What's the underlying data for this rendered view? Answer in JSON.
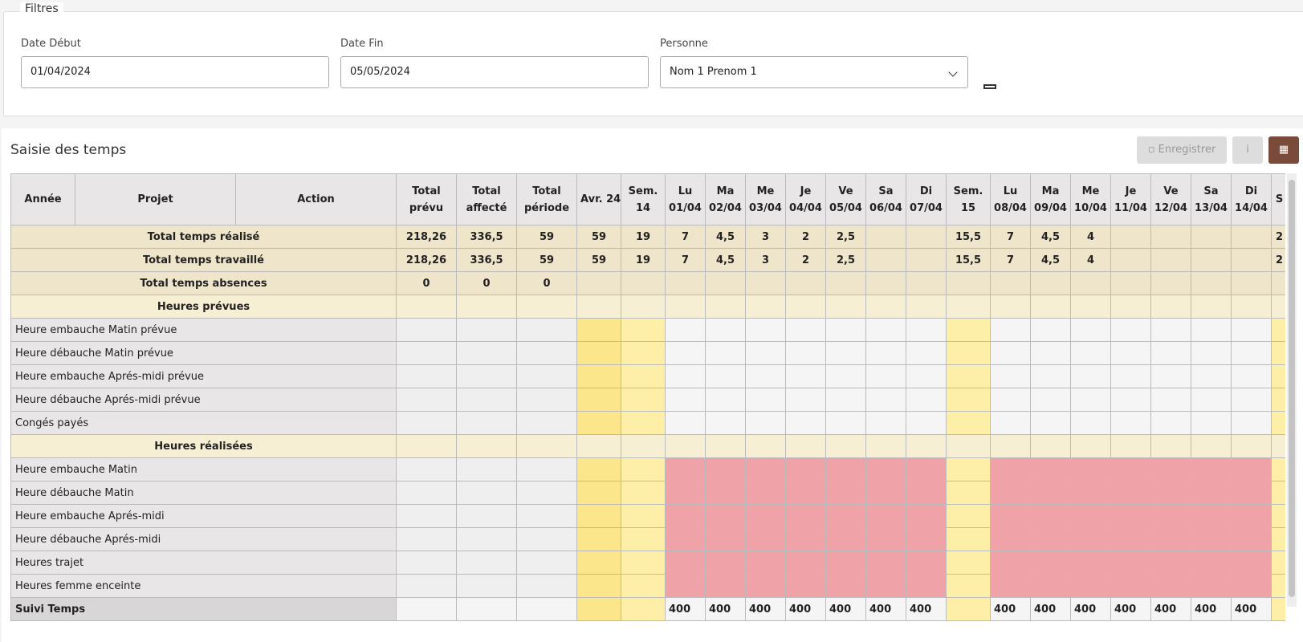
{
  "filters": {
    "legend": "Filtres",
    "fields": [
      {
        "label": "Date Début",
        "value": "01/04/2024"
      },
      {
        "label": "Date Fin",
        "value": "05/05/2024"
      },
      {
        "label": "Personne",
        "value": "Nom 1 Prenom 1"
      }
    ]
  },
  "panel": {
    "title": "Saisie des temps",
    "buttons": [
      "Enregistrer",
      "i"
    ]
  },
  "table": {
    "headers": [
      [
        "Année"
      ],
      [
        "Projet"
      ],
      [
        "Action"
      ],
      [
        "Total",
        "prévu"
      ],
      [
        "Total",
        "affecté"
      ],
      [
        "Total",
        "période"
      ],
      [
        "Avr. 24"
      ],
      [
        "Sem.",
        "14"
      ],
      [
        "Lu",
        "01/04"
      ],
      [
        "Ma",
        "02/04"
      ],
      [
        "Me",
        "03/04"
      ],
      [
        "Je",
        "04/04"
      ],
      [
        "Ve",
        "05/04"
      ],
      [
        "Sa",
        "06/04"
      ],
      [
        "Di",
        "07/04"
      ],
      [
        "Sem.",
        "15"
      ],
      [
        "Lu",
        "08/04"
      ],
      [
        "Ma",
        "09/04"
      ],
      [
        "Me",
        "10/04"
      ],
      [
        "Je",
        "11/04"
      ],
      [
        "Ve",
        "12/04"
      ],
      [
        "Sa",
        "13/04"
      ],
      [
        "Di",
        "14/04"
      ],
      [
        "S"
      ]
    ],
    "totals": [
      {
        "label": "Total temps réalisé",
        "cells": [
          "218,26",
          "336,5",
          "59",
          "59",
          "19",
          "7",
          "4,5",
          "3",
          "2",
          "2,5",
          null,
          null,
          "15,5",
          "7",
          "4,5",
          "4",
          null,
          null,
          null,
          null,
          "2"
        ]
      },
      {
        "label": "Total temps travaillé",
        "cells": [
          "218,26",
          "336,5",
          "59",
          "59",
          "19",
          "7",
          "4,5",
          "3",
          "2",
          "2,5",
          null,
          null,
          "15,5",
          "7",
          "4,5",
          "4",
          null,
          null,
          null,
          null,
          "2"
        ]
      },
      {
        "label": "Total temps absences",
        "cells": [
          "0",
          "0",
          "0",
          null,
          null,
          null,
          null,
          null,
          null,
          null,
          null,
          null,
          null,
          null,
          null,
          null,
          null,
          null,
          null,
          null,
          null
        ]
      }
    ],
    "sections": [
      {
        "title": "Heures prévues",
        "rows": [
          "Heure embauche Matin prévue",
          "Heure débauche Matin prévue",
          "Heure embauche Aprés-midi prévue",
          "Heure débauche Aprés-midi prévue",
          "Congés payés"
        ]
      },
      {
        "title": "Heures réalisées",
        "rows": [
          "Heure embauche Matin",
          "Heure débauche Matin",
          "Heure embauche Aprés-midi",
          "Heure débauche Aprés-midi",
          "Heures trajet",
          "Heures femme enceinte"
        ]
      }
    ],
    "suivi": {
      "label": "Suivi Temps",
      "cells": [
        null,
        null,
        null,
        null,
        null,
        "400",
        "400",
        "400",
        "400",
        "400",
        "400",
        "400",
        null,
        "400",
        "400",
        "400",
        "400",
        "400",
        "400",
        "400",
        null
      ]
    }
  }
}
